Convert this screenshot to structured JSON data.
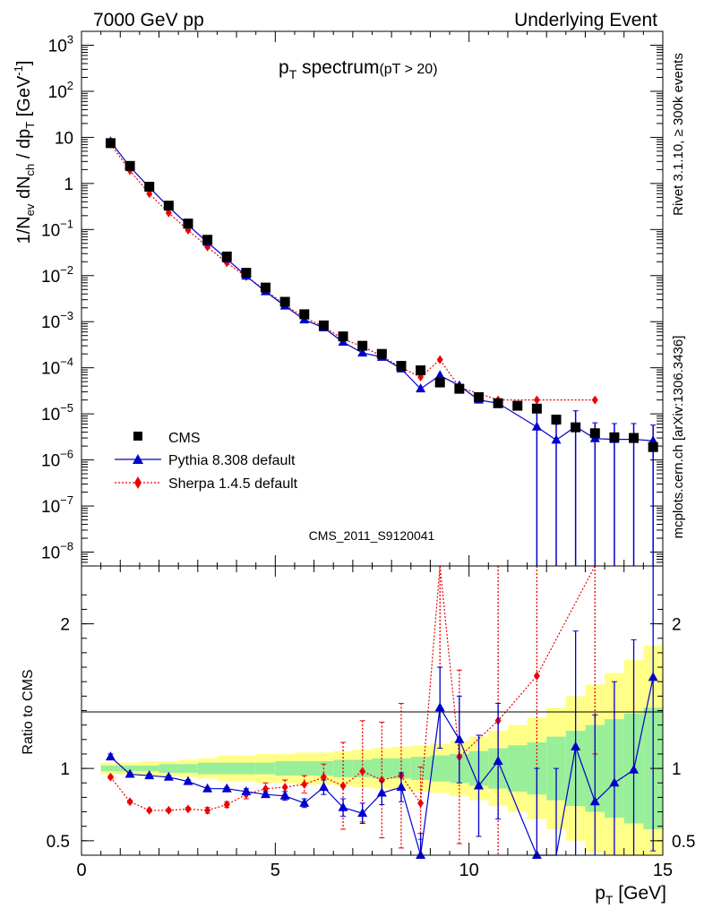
{
  "header": {
    "left": "7000 GeV pp",
    "right": "Underlying Event"
  },
  "side_notes": {
    "rivet": "Rivet 3.1.10, ≥ 300k events",
    "mcplots": "mcplots.cern.ch [arXiv:1306.3436]"
  },
  "chart_data": {
    "type": "scatter",
    "title": {
      "main": "p",
      "main_sub": "T",
      "main_rest": " spectrum",
      "small": "(pT > 20)"
    },
    "watermark": "CMS_2011_S9120041",
    "xaxis": {
      "range": [
        0,
        15
      ],
      "ticks": [
        "0",
        "5",
        "10",
        "15"
      ],
      "label_main": "p",
      "label_sub": "T",
      "label_rest": " [GeV]"
    },
    "main_yaxis": {
      "scale": "log",
      "range": [
        5e-09,
        2000
      ],
      "ticks": [
        {
          "v": 1000,
          "base": "10",
          "exp": "3"
        },
        {
          "v": 100,
          "base": "10",
          "exp": "2"
        },
        {
          "v": 10,
          "base": "10",
          "exp": ""
        },
        {
          "v": 1,
          "base": "1",
          "exp": ""
        },
        {
          "v": 0.1,
          "base": "10",
          "exp": "−1"
        },
        {
          "v": 0.01,
          "base": "10",
          "exp": "−2"
        },
        {
          "v": 0.001,
          "base": "10",
          "exp": "−3"
        },
        {
          "v": 0.0001,
          "base": "10",
          "exp": "−4"
        },
        {
          "v": 1e-05,
          "base": "10",
          "exp": "−5"
        },
        {
          "v": 1e-06,
          "base": "10",
          "exp": "−6"
        },
        {
          "v": 1e-07,
          "base": "10",
          "exp": "−7"
        },
        {
          "v": 1e-08,
          "base": "10",
          "exp": "−8"
        }
      ],
      "label": "1/N_ev dN_ch / dp_T [GeV^-1]"
    },
    "ratio_yaxis": {
      "range": [
        0.4,
        2.4
      ],
      "ticks": [
        "2",
        "1",
        "0.5"
      ],
      "tick_values": [
        2,
        1,
        0.5
      ],
      "label": "Ratio to CMS"
    },
    "legend": {
      "position": "lower-left",
      "entries": [
        "CMS",
        "Pythia 8.308 default",
        "Sherpa 1.4.5 default"
      ]
    },
    "colors": {
      "cms": "#000000",
      "pythia": "#0000cc",
      "sherpa": "#ee0000",
      "band_inner": "#99ee99",
      "band_outer": "#ffff88"
    },
    "x": [
      0.75,
      1.25,
      1.75,
      2.25,
      2.75,
      3.25,
      3.75,
      4.25,
      4.75,
      5.25,
      5.75,
      6.25,
      6.75,
      7.25,
      7.75,
      8.25,
      8.75,
      9.25,
      9.75,
      10.25,
      10.75,
      11.25,
      11.75,
      12.25,
      12.75,
      13.25,
      13.75,
      14.25,
      14.75
    ],
    "series": [
      {
        "name": "CMS",
        "values": [
          7.5,
          2.4,
          0.85,
          0.33,
          0.135,
          0.06,
          0.026,
          0.0115,
          0.0055,
          0.0027,
          0.00145,
          0.00083,
          0.00048,
          0.0003,
          0.0002,
          0.00011,
          8.8e-05,
          4.8e-05,
          3.5e-05,
          2.3e-05,
          1.7e-05,
          1.5e-05,
          1.3e-05,
          7.5e-06,
          5.1e-06,
          3.8e-06,
          3.1e-06,
          3e-06,
          1.9e-06
        ]
      },
      {
        "name": "Pythia 8.308 default",
        "x": [
          0.75,
          1.25,
          1.75,
          2.25,
          2.75,
          3.25,
          3.75,
          4.25,
          4.75,
          5.25,
          5.75,
          6.25,
          6.75,
          7.25,
          7.75,
          8.25,
          8.75,
          9.25,
          9.75,
          10.25,
          10.75,
          11.75,
          12.25,
          12.75,
          13.25,
          13.75,
          14.25,
          14.75
        ],
        "values": [
          8.1,
          2.3,
          0.82,
          0.31,
          0.125,
          0.053,
          0.023,
          0.0098,
          0.0045,
          0.0022,
          0.0011,
          0.00074,
          0.00036,
          0.00021,
          0.00017,
          9.5e-05,
          3.5e-05,
          6.8e-05,
          4.1e-05,
          2e-05,
          1.7e-05,
          5.2e-06,
          2.7e-06,
          5.3e-06,
          2.9e-06,
          2.8e-06,
          2.8e-06,
          2.6e-06
        ],
        "ratio": [
          1.08,
          0.96,
          0.95,
          0.94,
          0.91,
          0.86,
          0.86,
          0.84,
          0.82,
          0.81,
          0.76,
          0.87,
          0.73,
          0.69,
          0.83,
          0.87,
          0.4,
          1.42,
          1.2,
          0.88,
          1.05,
          0.4,
          0.2,
          1.15,
          0.77,
          0.9,
          0.99,
          1.63
        ],
        "ratio_err": [
          0.02,
          0.01,
          0.01,
          0.01,
          0.01,
          0.01,
          0.01,
          0.02,
          0.02,
          0.03,
          0.03,
          0.05,
          0.06,
          0.07,
          0.08,
          0.1,
          0.15,
          0.28,
          0.3,
          0.35,
          0.4,
          0.6,
          0.8,
          0.8,
          0.6,
          0.7,
          0.9,
          1.2
        ]
      },
      {
        "name": "Sherpa 1.4.5 default",
        "x": [
          0.75,
          1.25,
          1.75,
          2.25,
          2.75,
          3.25,
          3.75,
          4.25,
          4.75,
          5.25,
          5.75,
          6.25,
          6.75,
          7.25,
          7.75,
          8.25,
          8.75,
          9.25,
          9.75,
          10.75,
          11.75,
          13.25
        ],
        "values": [
          7.1,
          1.9,
          0.6,
          0.23,
          0.097,
          0.042,
          0.019,
          0.0095,
          0.0048,
          0.0023,
          0.00125,
          0.00078,
          0.00042,
          0.00029,
          0.00018,
          0.0001,
          6.3e-05,
          0.00015,
          3.8e-05,
          2e-05,
          2e-05,
          2e-05
        ],
        "ratio": [
          0.94,
          0.77,
          0.71,
          0.71,
          0.72,
          0.71,
          0.75,
          0.82,
          0.86,
          0.87,
          0.89,
          0.94,
          0.88,
          0.98,
          0.92,
          0.95,
          0.76,
          2.5,
          1.08,
          1.33,
          1.64,
          2.6
        ],
        "ratio_err": [
          0.01,
          0.01,
          0.01,
          0.01,
          0.01,
          0.02,
          0.02,
          0.03,
          0.04,
          0.05,
          0.06,
          0.09,
          0.3,
          0.35,
          0.4,
          0.5,
          0.25,
          0.8,
          0.6,
          1.2,
          1.5,
          1.5
        ]
      }
    ],
    "ratio_band": {
      "x_edges": [
        0.5,
        1.0,
        1.5,
        2.0,
        2.5,
        3.0,
        3.5,
        4.0,
        4.5,
        5.0,
        5.5,
        6.0,
        6.5,
        7.0,
        7.5,
        8.0,
        8.5,
        9.0,
        9.5,
        10.0,
        10.5,
        11.0,
        11.5,
        12.0,
        12.5,
        13.0,
        13.5,
        14.0,
        14.5,
        15.0
      ],
      "inner": [
        0.02,
        0.02,
        0.02,
        0.03,
        0.03,
        0.04,
        0.04,
        0.04,
        0.04,
        0.05,
        0.05,
        0.05,
        0.06,
        0.06,
        0.07,
        0.07,
        0.08,
        0.09,
        0.1,
        0.12,
        0.14,
        0.16,
        0.18,
        0.22,
        0.26,
        0.3,
        0.34,
        0.38,
        0.42
      ],
      "outer": [
        0.04,
        0.04,
        0.05,
        0.05,
        0.06,
        0.07,
        0.09,
        0.09,
        0.1,
        0.1,
        0.11,
        0.11,
        0.12,
        0.13,
        0.14,
        0.15,
        0.16,
        0.17,
        0.19,
        0.22,
        0.26,
        0.3,
        0.35,
        0.42,
        0.5,
        0.58,
        0.66,
        0.75,
        0.85
      ]
    }
  }
}
